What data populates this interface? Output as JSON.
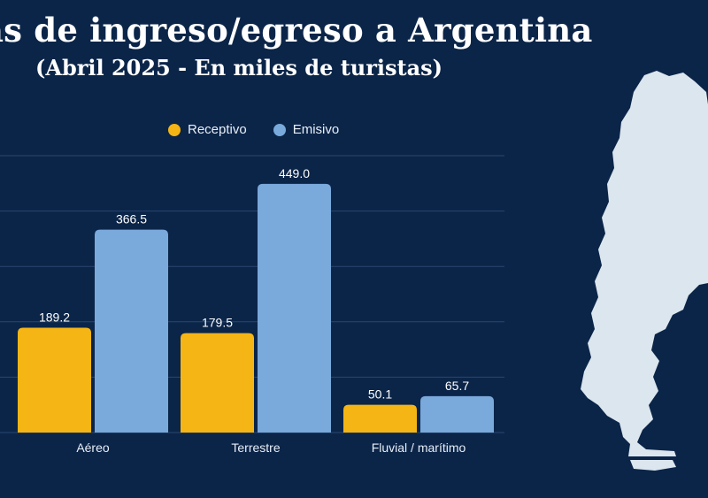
{
  "header": {
    "title": "as de ingreso/egreso a Argentina",
    "subtitle": "(Abril 2025 - En miles de turistas)"
  },
  "colors": {
    "background": "#0b2549",
    "receptivo": "#f5b514",
    "emisivo": "#7aa9dc",
    "map": "#dce6ee",
    "grid": "#2b4670"
  },
  "chart_data": {
    "type": "bar",
    "title": "as de ingreso/egreso a Argentina",
    "subtitle": "(Abril 2025 - En miles de turistas)",
    "categories": [
      "Aéreo",
      "Terrestre",
      "Fluvial / marítimo"
    ],
    "series": [
      {
        "name": "Receptivo",
        "values": [
          189.2,
          179.5,
          50.1
        ],
        "labels": [
          "189.2",
          "179.5",
          "50.1"
        ]
      },
      {
        "name": "Emisivo",
        "values": [
          366.5,
          449.0,
          65.7
        ],
        "labels": [
          "366.5",
          "449.0",
          "65.7"
        ]
      }
    ],
    "ylim": [
      0,
      500
    ],
    "yticks": [
      0,
      100,
      200,
      300,
      400,
      500
    ],
    "grid": true,
    "legend": "top-center"
  },
  "map": {
    "icon": "argentina-map-icon"
  }
}
